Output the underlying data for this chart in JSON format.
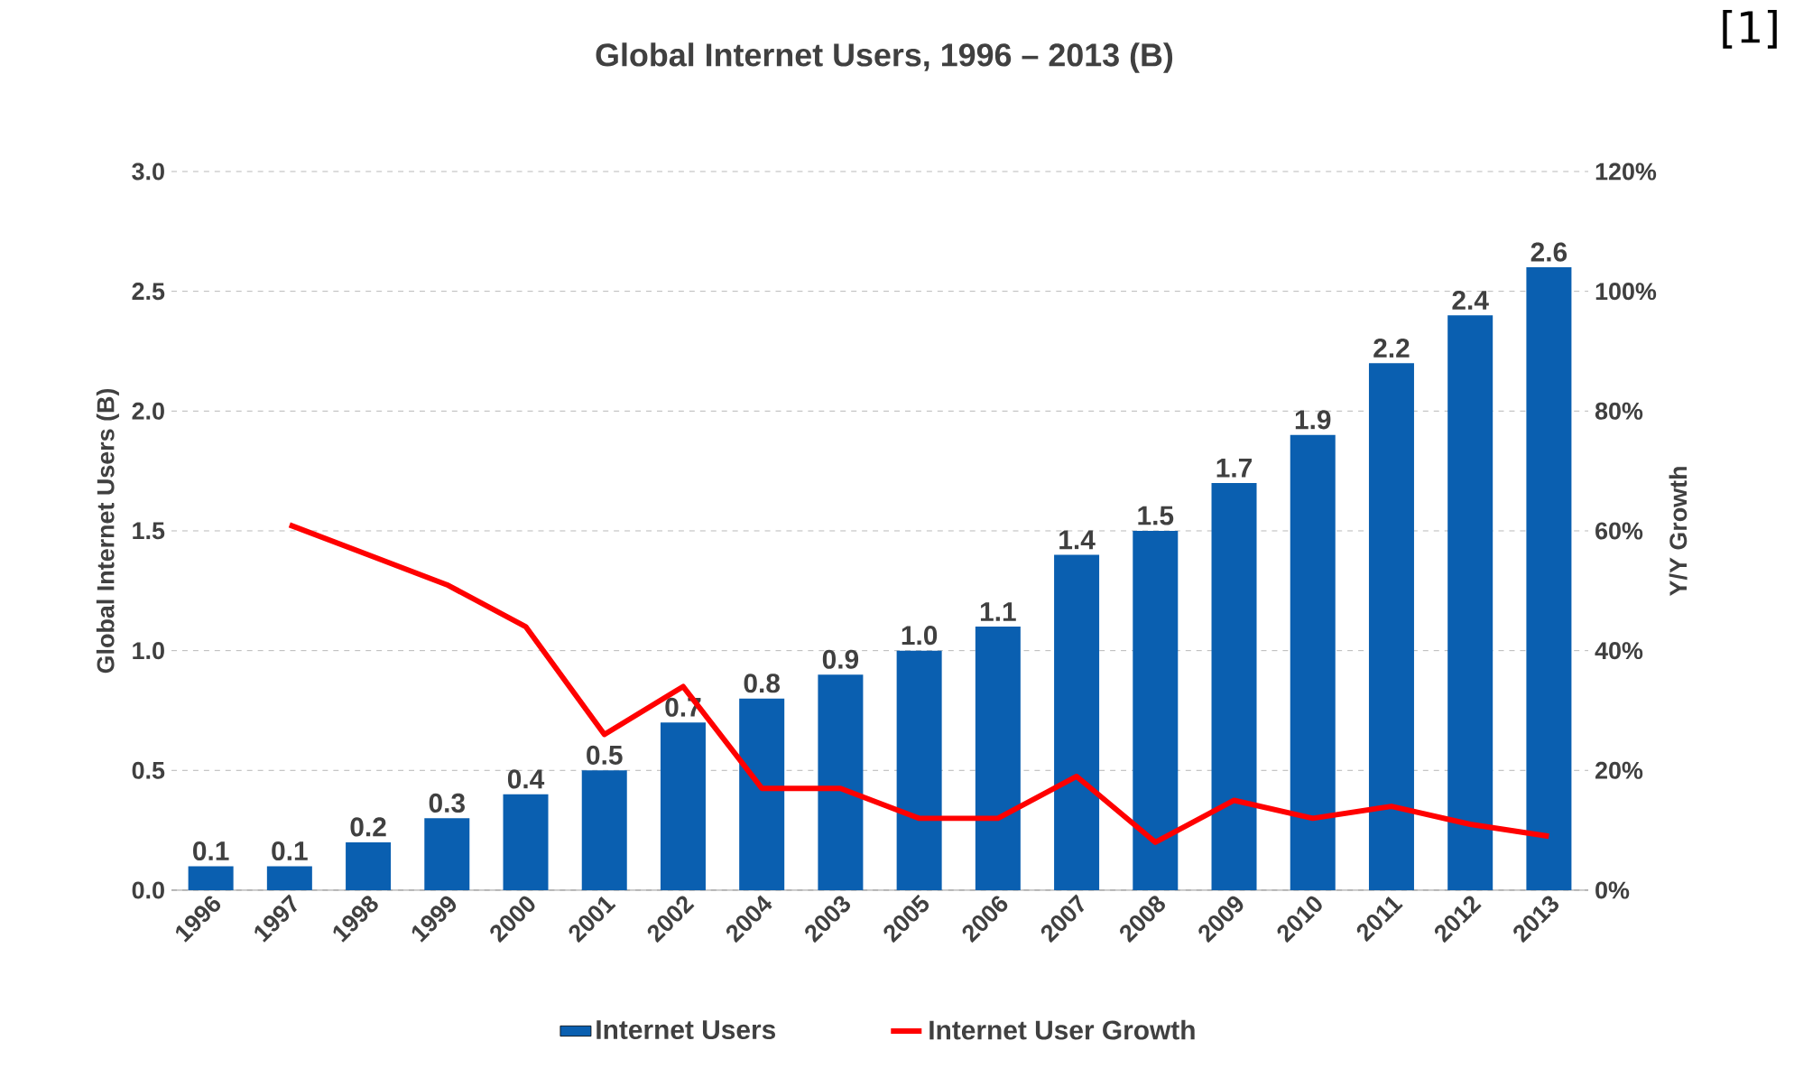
{
  "chart_data": {
    "type": "bar",
    "title": "Global Internet Users, 1996 – 2013 (B)",
    "ylabel": "Global Internet Users (B)",
    "y2label": "Y/Y Growth",
    "annotations": [
      "[1]"
    ],
    "categories": [
      "1996",
      "1997",
      "1998",
      "1999",
      "2000",
      "2001",
      "2002",
      "2004",
      "2003",
      "2005",
      "2006",
      "2007",
      "2008",
      "2009",
      "2010",
      "2011",
      "2012",
      "2013"
    ],
    "series": [
      {
        "name": "Internet Users",
        "color": "#0a5fb0",
        "values": [
          0.1,
          0.1,
          0.2,
          0.3,
          0.4,
          0.5,
          0.7,
          0.8,
          0.9,
          1.0,
          1.1,
          1.4,
          1.5,
          1.7,
          1.9,
          2.2,
          2.4,
          2.6
        ],
        "value_labels": [
          "0.1",
          "0.1",
          "0.2",
          "0.3",
          "0.4",
          "0.5",
          "0.7",
          "0.8",
          "0.9",
          "1.0",
          "1.1",
          "1.4",
          "1.5",
          "1.7",
          "1.9",
          "2.2",
          "2.4",
          "2.6"
        ]
      },
      {
        "name": "Internet User Growth",
        "type": "line",
        "axis": "y2",
        "color": "#ff0000",
        "values": [
          null,
          61,
          56,
          51,
          44,
          26,
          34,
          17,
          17,
          12,
          12,
          19,
          8,
          15,
          12,
          14,
          11,
          9
        ]
      }
    ],
    "ylim": [
      0,
      3
    ],
    "yticks": [
      {
        "value": 0,
        "label": "0.0"
      },
      {
        "value": 0.5,
        "label": "0.5"
      },
      {
        "value": 1,
        "label": "1.0"
      },
      {
        "value": 1.5,
        "label": "1.5"
      },
      {
        "value": 2,
        "label": "2.0"
      },
      {
        "value": 2.5,
        "label": "2.5"
      },
      {
        "value": 3,
        "label": "3.0"
      }
    ],
    "y2lim": [
      0,
      120
    ],
    "y2ticks": [
      {
        "value": 0,
        "label": "0%"
      },
      {
        "value": 20,
        "label": "20%"
      },
      {
        "value": 40,
        "label": "40%"
      },
      {
        "value": 60,
        "label": "60%"
      },
      {
        "value": 80,
        "label": "80%"
      },
      {
        "value": 100,
        "label": "100%"
      },
      {
        "value": 120,
        "label": "120%"
      }
    ],
    "grid": "y",
    "legend": "bottom",
    "marker": "none"
  }
}
